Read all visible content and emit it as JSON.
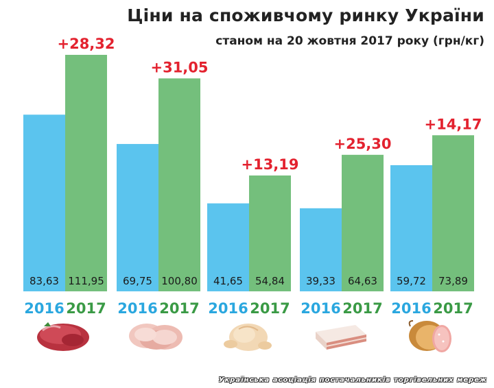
{
  "chart_data": {
    "type": "bar",
    "title": "Ціни на споживчому ринку України",
    "subtitle": "станом на 20 жовтня 2017 року (грн/кг)",
    "categories": [
      "",
      "",
      "",
      "",
      ""
    ],
    "series": [
      {
        "name": "2016",
        "color": "#5bc4ee",
        "values": [
          83.63,
          69.75,
          41.65,
          39.33,
          59.72
        ],
        "labels": [
          "83,63",
          "69,75",
          "41,65",
          "39,33",
          "59,72"
        ]
      },
      {
        "name": "2017",
        "color": "#74bf7c",
        "values": [
          111.95,
          100.8,
          54.84,
          64.63,
          73.89
        ],
        "labels": [
          "111,95",
          "100,80",
          "54,84",
          "64,63",
          "73,89"
        ]
      }
    ],
    "differences": [
      "+28,32",
      "+31,05",
      "+13,19",
      "+25,30",
      "+14,17"
    ],
    "year_labels": [
      "2016",
      "2017"
    ],
    "colors": {
      "year_2016": "#2aa7df",
      "year_2017": "#3a9a45",
      "difference": "#e3222f"
    },
    "icons": [
      "raw-beef-icon",
      "pork-chops-icon",
      "raw-chicken-icon",
      "pork-fat-icon",
      "sausage-icon"
    ]
  },
  "footer": "Українська асоціація постачальників торгівельних мереж"
}
